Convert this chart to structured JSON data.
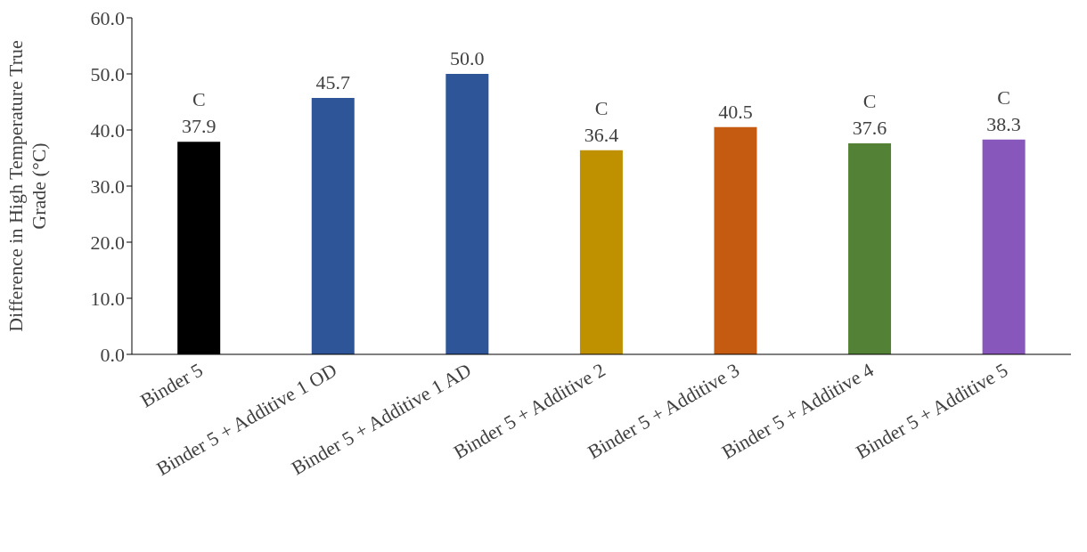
{
  "chart_data": {
    "type": "bar",
    "ylabel": "Difference in High Temperature True Grade (°C)",
    "categories": [
      "Binder 5",
      "Binder 5 + Additive 1 OD",
      "Binder 5 + Additive 1 AD",
      "Binder 5 + Additive 2",
      "Binder 5 + Additive 3",
      "Binder 5 + Additive 4",
      "Binder 5 + Additive 5"
    ],
    "values": [
      37.9,
      45.7,
      50.0,
      36.4,
      40.5,
      37.6,
      38.3
    ],
    "colors": [
      "#000000",
      "#2e5597",
      "#2e5597",
      "#bf9000",
      "#c55a11",
      "#538135",
      "#8757bb"
    ],
    "value_labels": [
      "37.9",
      "45.7",
      "50.0",
      "36.4",
      "40.5",
      "37.6",
      "38.3"
    ],
    "annotations": [
      {
        "text": "C",
        "x": "Binder 5",
        "y": 37.9
      },
      {
        "text": "C",
        "x": "Binder 5 + Additive 2",
        "y": 36.4
      },
      {
        "text": "C",
        "x": "Binder 5 + Additive 4",
        "y": 37.6
      },
      {
        "text": "C",
        "x": "Binder 5 + Additive 5",
        "y": 38.3
      }
    ],
    "ylim": [
      0,
      60
    ],
    "yticks": [
      {
        "value": 0,
        "label": "0.0"
      },
      {
        "value": 10,
        "label": "10.0"
      },
      {
        "value": 20,
        "label": "20.0"
      },
      {
        "value": 30,
        "label": "30.0"
      },
      {
        "value": 40,
        "label": "40.0"
      },
      {
        "value": 50,
        "label": "50.0"
      },
      {
        "value": 60,
        "label": "60.0"
      }
    ],
    "grid": false,
    "legend": false
  }
}
